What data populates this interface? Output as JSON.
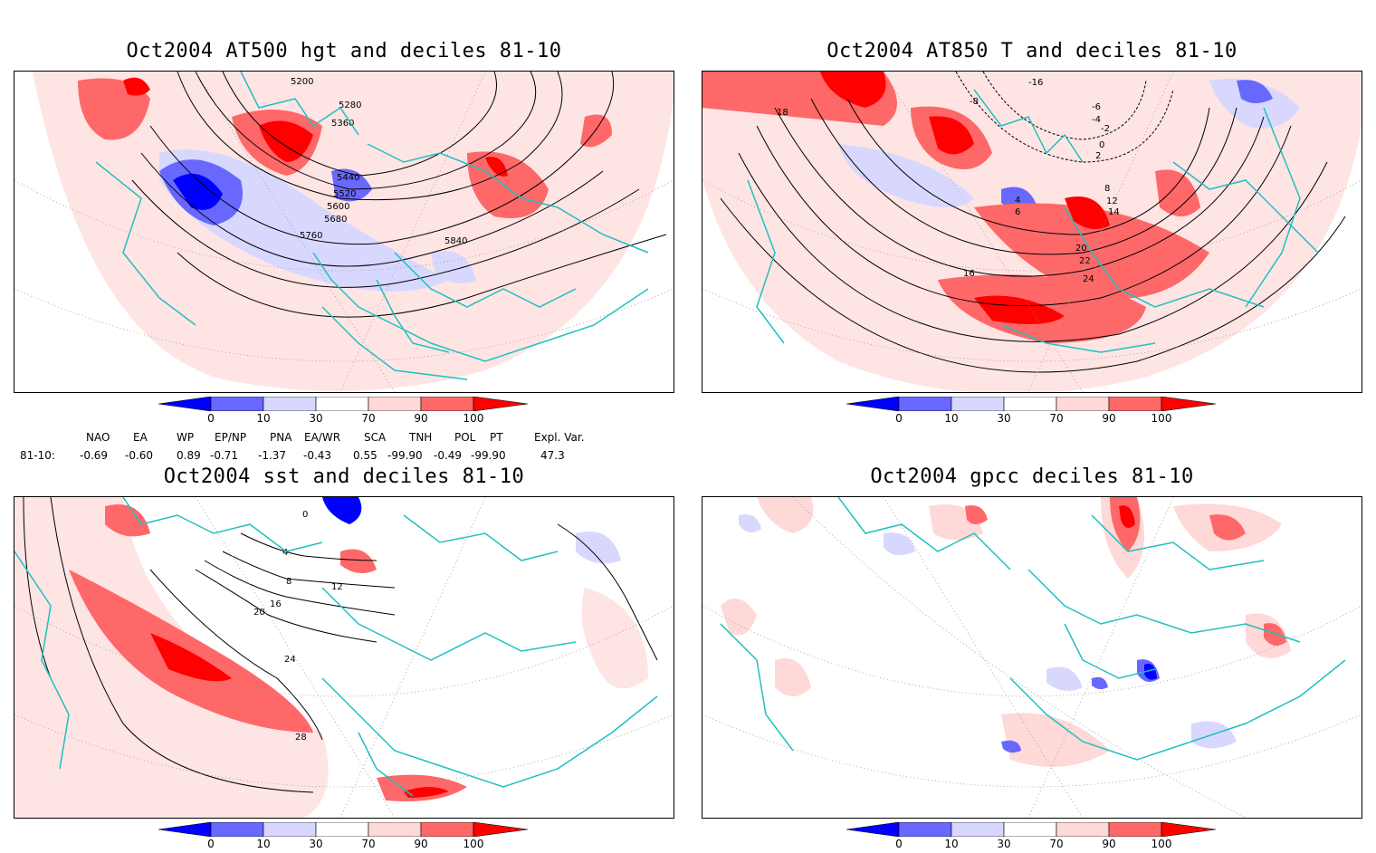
{
  "panels": [
    {
      "title": "Oct2004 AT500 hgt and deciles 81-10",
      "contour_labels": [
        "5200",
        "5280",
        "5360",
        "5440",
        "5520",
        "5600",
        "5680",
        "5760",
        "5840"
      ]
    },
    {
      "title": "Oct2004 AT850 T and deciles 81-10",
      "contour_labels": [
        "-16",
        "-8",
        "-6",
        "-4",
        "-2",
        "0",
        "2",
        "4",
        "6",
        "8",
        "12",
        "14",
        "16",
        "18",
        "20",
        "22",
        "24"
      ]
    },
    {
      "title": "Oct2004 sst and deciles 81-10",
      "contour_labels": [
        "0",
        "4",
        "8",
        "12",
        "16",
        "20",
        "24",
        "28"
      ]
    },
    {
      "title": "Oct2004 gpcc deciles 81-10",
      "contour_labels": []
    }
  ],
  "colorbar": {
    "ticks": [
      "0",
      "10",
      "30",
      "70",
      "90",
      "100"
    ],
    "colors": [
      "#0000ff",
      "#6868ff",
      "#d8d8ff",
      "#ffffff",
      "#ffd8d8",
      "#ff6868",
      "#ff0000"
    ]
  },
  "indices": {
    "headers": [
      "NAO",
      "EA",
      "WP",
      "EP/NP",
      "PNA",
      "EA/WR",
      "SCA",
      "TNH",
      "POL",
      "PT",
      "Expl. Var."
    ],
    "row_label": "81-10:",
    "values": [
      "-0.69",
      "-0.60",
      "0.89",
      "-0.71",
      "-1.37",
      "-0.43",
      "0.55",
      "-99.90",
      "-0.49",
      "-99.90",
      "47.3"
    ]
  }
}
